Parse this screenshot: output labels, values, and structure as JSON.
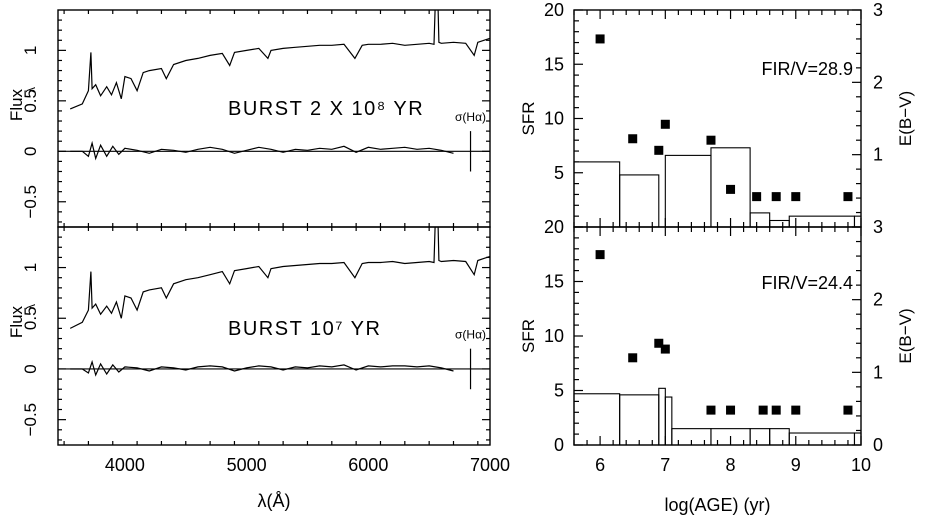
{
  "chart_data": [
    {
      "type": "line",
      "id": "spectrum-top",
      "xlabel": "λ(Å)",
      "ylabel": "Flux",
      "ylabel_suffix": "λ",
      "xlim": [
        3450,
        7000
      ],
      "ylim": [
        -0.75,
        1.4
      ],
      "x_ticks": [
        4000,
        5000,
        6000,
        7000
      ],
      "y_ticks": [
        -0.5,
        0,
        0.5,
        1
      ],
      "y_tick_labels": [
        "−0.5",
        "0",
        "0.5",
        "1"
      ],
      "annotation": "BURST 2 X 10⁸ YR",
      "sigma_label": "σ(Hα)",
      "zero_line": 0,
      "sigma_bar": {
        "x": 6840,
        "y": [
          -0.2,
          0.2
        ]
      },
      "series": [
        {
          "role": "spectrum",
          "x": [
            3550,
            3650,
            3700,
            3720,
            3730,
            3760,
            3800,
            3850,
            3890,
            3930,
            3970,
            4000,
            4050,
            4100,
            4150,
            4200,
            4300,
            4340,
            4400,
            4500,
            4600,
            4700,
            4800,
            4861,
            4900,
            5000,
            5100,
            5175,
            5200,
            5300,
            5400,
            5500,
            5600,
            5700,
            5800,
            5890,
            5950,
            6000,
            6100,
            6200,
            6300,
            6400,
            6500,
            6540,
            6563,
            6580,
            6600,
            6700,
            6800,
            6870,
            6900,
            6950,
            7000
          ],
          "y": [
            0.42,
            0.47,
            0.6,
            0.98,
            0.62,
            0.66,
            0.55,
            0.64,
            0.56,
            0.68,
            0.52,
            0.74,
            0.72,
            0.6,
            0.78,
            0.8,
            0.82,
            0.72,
            0.86,
            0.9,
            0.92,
            0.95,
            0.97,
            0.85,
            0.98,
            1.0,
            1.02,
            0.92,
            1.0,
            1.02,
            1.03,
            1.04,
            1.05,
            1.05,
            1.06,
            0.92,
            1.05,
            1.06,
            1.06,
            1.07,
            1.05,
            1.06,
            1.07,
            1.06,
            1.95,
            1.08,
            1.07,
            1.08,
            1.07,
            0.95,
            1.08,
            1.1,
            1.12
          ]
        },
        {
          "role": "residual",
          "x": [
            3550,
            3650,
            3700,
            3730,
            3760,
            3800,
            3850,
            3900,
            3950,
            4000,
            4100,
            4200,
            4300,
            4400,
            4500,
            4600,
            4700,
            4800,
            4900,
            5000,
            5100,
            5200,
            5300,
            5400,
            5500,
            5600,
            5700,
            5800,
            5900,
            6000,
            6100,
            6200,
            6300,
            6400,
            6500,
            6600,
            6700
          ],
          "y": [
            0,
            0,
            -0.05,
            0.08,
            -0.07,
            0.06,
            -0.05,
            0.05,
            -0.03,
            0.03,
            0.01,
            -0.02,
            0.02,
            0.01,
            -0.01,
            0.02,
            0.04,
            0.02,
            -0.02,
            0.01,
            0.04,
            0.02,
            -0.01,
            0.02,
            0.01,
            0.03,
            0.02,
            0.05,
            -0.01,
            0.04,
            0.02,
            0.03,
            0.04,
            0.02,
            0.03,
            0.01,
            -0.02
          ]
        }
      ]
    },
    {
      "type": "line",
      "id": "spectrum-bottom",
      "xlabel": "λ(Å)",
      "ylabel": "Flux",
      "ylabel_suffix": "λ",
      "xlim": [
        3450,
        7000
      ],
      "ylim": [
        -0.75,
        1.4
      ],
      "x_ticks": [
        4000,
        5000,
        6000,
        7000
      ],
      "x_tick_labels": [
        "4000",
        "5000",
        "6000",
        "7000"
      ],
      "y_ticks": [
        -0.5,
        0,
        0.5,
        1
      ],
      "y_tick_labels": [
        "−0.5",
        "0",
        "0.5",
        "1"
      ],
      "annotation": "BURST 10⁷ YR",
      "sigma_label": "σ(Hα)",
      "zero_line": 0,
      "sigma_bar": {
        "x": 6840,
        "y": [
          -0.2,
          0.2
        ]
      },
      "series": [
        {
          "role": "spectrum",
          "x": [
            3550,
            3650,
            3700,
            3720,
            3730,
            3760,
            3800,
            3850,
            3890,
            3930,
            3970,
            4000,
            4050,
            4100,
            4150,
            4200,
            4300,
            4340,
            4400,
            4500,
            4600,
            4700,
            4800,
            4861,
            4900,
            5000,
            5100,
            5175,
            5200,
            5300,
            5400,
            5500,
            5600,
            5700,
            5800,
            5890,
            5950,
            6000,
            6100,
            6200,
            6300,
            6400,
            6500,
            6540,
            6563,
            6580,
            6600,
            6700,
            6800,
            6870,
            6900,
            6950,
            7000
          ],
          "y": [
            0.4,
            0.46,
            0.58,
            0.96,
            0.6,
            0.64,
            0.54,
            0.62,
            0.55,
            0.66,
            0.5,
            0.72,
            0.7,
            0.58,
            0.76,
            0.78,
            0.8,
            0.7,
            0.84,
            0.88,
            0.9,
            0.93,
            0.96,
            0.84,
            0.97,
            0.99,
            1.01,
            0.9,
            0.99,
            1.01,
            1.02,
            1.03,
            1.04,
            1.04,
            1.05,
            0.9,
            1.04,
            1.05,
            1.05,
            1.06,
            1.04,
            1.05,
            1.06,
            1.05,
            1.95,
            1.07,
            1.06,
            1.07,
            1.06,
            0.93,
            1.07,
            1.09,
            1.11
          ]
        },
        {
          "role": "residual",
          "x": [
            3550,
            3650,
            3700,
            3730,
            3760,
            3800,
            3850,
            3900,
            3950,
            4000,
            4100,
            4200,
            4300,
            4400,
            4500,
            4600,
            4700,
            4800,
            4900,
            5000,
            5100,
            5200,
            5300,
            5400,
            5500,
            5600,
            5700,
            5800,
            5900,
            6000,
            6100,
            6200,
            6300,
            6400,
            6500,
            6600,
            6700
          ],
          "y": [
            0,
            0,
            -0.04,
            0.07,
            -0.06,
            0.05,
            -0.05,
            0.04,
            -0.03,
            0.02,
            0.01,
            -0.02,
            0.02,
            0.01,
            -0.01,
            0.02,
            0.03,
            0.02,
            -0.02,
            0.01,
            0.03,
            0.02,
            -0.01,
            0.02,
            0.01,
            0.03,
            0.02,
            0.04,
            -0.01,
            0.03,
            0.02,
            0.03,
            0.03,
            0.02,
            0.03,
            0.01,
            -0.02
          ]
        }
      ]
    },
    {
      "type": "bar",
      "id": "sfr-top",
      "xlabel": "log(AGE) (yr)",
      "ylabel": "SFR",
      "y2label": "E(B−V)",
      "xlim": [
        5.6,
        10
      ],
      "ylim": [
        0,
        20
      ],
      "y2lim": [
        0,
        3
      ],
      "x_ticks": [
        6,
        7,
        8,
        9,
        10
      ],
      "y_ticks": [
        5,
        10,
        15,
        20
      ],
      "y_tick_labels": [
        "5",
        "10",
        "15",
        "20"
      ],
      "y2_ticks": [
        1,
        2,
        3
      ],
      "y2_tick_labels": [
        "1",
        "2",
        "3"
      ],
      "annotation": "FIR/V=28.9",
      "histogram": {
        "edges": [
          5.6,
          6.3,
          6.9,
          7.0,
          7.7,
          8.3,
          8.6,
          8.9,
          9.9,
          10.0
        ],
        "values": [
          6.0,
          4.8,
          0.0,
          6.6,
          7.3,
          1.3,
          0.6,
          1.0,
          1.0
        ]
      },
      "points": {
        "x": [
          6.0,
          6.5,
          6.9,
          7.0,
          7.7,
          8.0,
          8.4,
          8.7,
          9.0,
          9.8
        ],
        "y": [
          2.6,
          1.22,
          1.06,
          1.42,
          1.2,
          0.52,
          0.42,
          0.42,
          0.42,
          0.42
        ]
      }
    },
    {
      "type": "bar",
      "id": "sfr-bottom",
      "xlabel": "log(AGE) (yr)",
      "ylabel": "SFR",
      "y2label": "E(B−V)",
      "xlim": [
        5.6,
        10
      ],
      "ylim": [
        0,
        20
      ],
      "y2lim": [
        0,
        3
      ],
      "x_ticks": [
        6,
        7,
        8,
        9,
        10
      ],
      "x_tick_labels": [
        "6",
        "7",
        "8",
        "9",
        "10"
      ],
      "y_ticks": [
        0,
        5,
        10,
        15,
        20
      ],
      "y_tick_labels": [
        "0",
        "5",
        "10",
        "15",
        "20"
      ],
      "y2_ticks": [
        0,
        1,
        2,
        3
      ],
      "y2_tick_labels": [
        "0",
        "1",
        "2",
        "3"
      ],
      "annotation": "FIR/V=24.4",
      "histogram": {
        "edges": [
          5.6,
          6.3,
          6.9,
          7.0,
          7.1,
          7.7,
          8.3,
          8.6,
          8.9,
          9.9,
          10.0
        ],
        "values": [
          4.7,
          4.6,
          5.2,
          4.4,
          1.5,
          1.5,
          1.5,
          1.5,
          1.1,
          1.1
        ]
      },
      "points": {
        "x": [
          6.0,
          6.5,
          6.9,
          7.0,
          7.7,
          8.0,
          8.5,
          8.7,
          9.0,
          9.8
        ],
        "y": [
          2.62,
          1.2,
          1.4,
          1.32,
          0.48,
          0.48,
          0.48,
          0.48,
          0.48,
          0.48
        ]
      }
    }
  ]
}
